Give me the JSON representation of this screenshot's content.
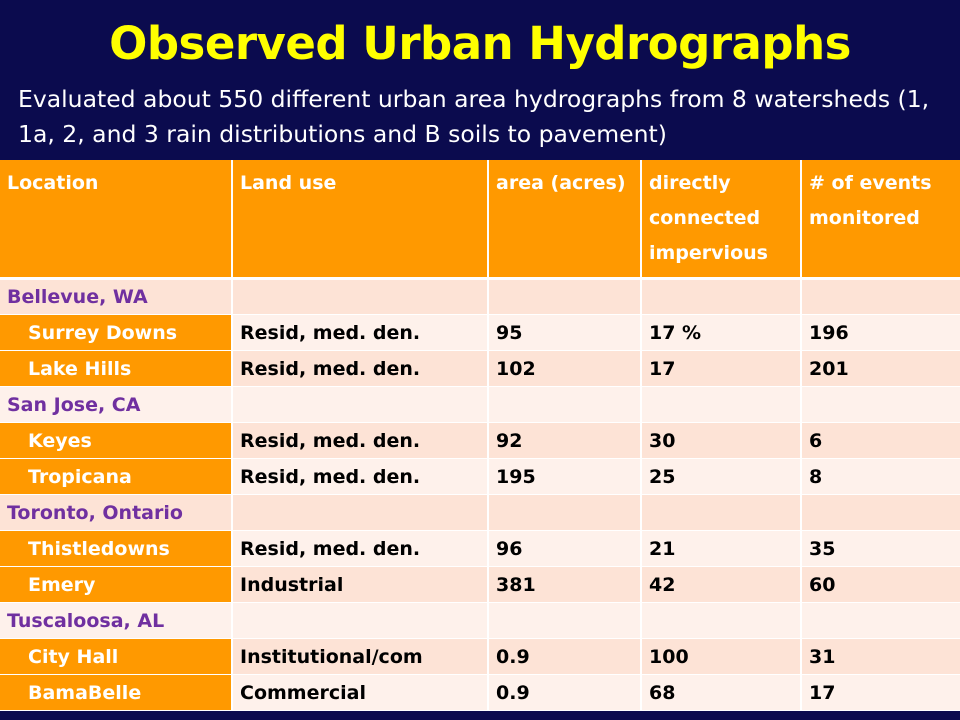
{
  "title": "Observed Urban Hydrographs",
  "subtitle": "Evaluated about 550 different urban area hydrographs from 8 watersheds  (1, 1a, 2, and 3 rain distributions and B soils to pavement)",
  "table": {
    "headers": [
      "Location",
      "Land use",
      "area (acres)",
      "directly connected impervious",
      "# of events monitored"
    ],
    "rows": [
      {
        "kind": "region",
        "location": "Bellevue, WA",
        "land_use": "",
        "area": "",
        "impervious": "",
        "events": ""
      },
      {
        "kind": "site",
        "location": "Surrey Downs",
        "land_use": "Resid, med. den.",
        "area": "95",
        "impervious": "17 %",
        "events": "196"
      },
      {
        "kind": "site",
        "location": "Lake Hills",
        "land_use": "Resid, med. den.",
        "area": "102",
        "impervious": "17",
        "events": "201"
      },
      {
        "kind": "region",
        "location": "San Jose, CA",
        "land_use": "",
        "area": "",
        "impervious": "",
        "events": ""
      },
      {
        "kind": "site",
        "location": "Keyes",
        "land_use": "Resid, med. den.",
        "area": "92",
        "impervious": "30",
        "events": "6"
      },
      {
        "kind": "site",
        "location": "Tropicana",
        "land_use": "Resid, med. den.",
        "area": "195",
        "impervious": "25",
        "events": "8"
      },
      {
        "kind": "region",
        "location": "Toronto, Ontario",
        "land_use": "",
        "area": "",
        "impervious": "",
        "events": ""
      },
      {
        "kind": "site",
        "location": "Thistledowns",
        "land_use": "Resid, med. den.",
        "area": "96",
        "impervious": "21",
        "events": "35"
      },
      {
        "kind": "site",
        "location": "Emery",
        "land_use": "Industrial",
        "area": "381",
        "impervious": "42",
        "events": "60"
      },
      {
        "kind": "region",
        "location": "Tuscaloosa, AL",
        "land_use": "",
        "area": "",
        "impervious": "",
        "events": ""
      },
      {
        "kind": "site",
        "location": "City Hall",
        "land_use": "Institutional/com",
        "area": "0.9",
        "impervious": "100",
        "events": "31"
      },
      {
        "kind": "site",
        "location": "BamaBelle",
        "land_use": "Commercial",
        "area": "0.9",
        "impervious": "68",
        "events": "17"
      }
    ]
  },
  "colors": {
    "background": "#0b0b4e",
    "title": "#ffff00",
    "header": "#ff9900",
    "region_text": "#7030a0",
    "row_odd": "#fde3d6",
    "row_even": "#fef1eb"
  }
}
